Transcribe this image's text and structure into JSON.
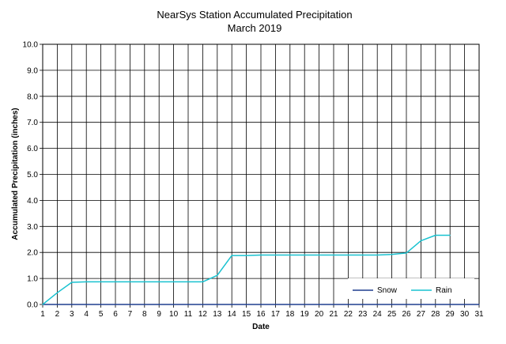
{
  "chart_data": {
    "type": "line",
    "title": "NearSys Station Accumulated Precipitation",
    "subtitle": "March 2019",
    "xlabel": "Date",
    "ylabel": "Accumulated Precipitation (inches)",
    "xlim": [
      1,
      31
    ],
    "ylim": [
      0,
      10
    ],
    "x_ticks": [
      "1",
      "2",
      "3",
      "4",
      "5",
      "6",
      "7",
      "8",
      "9",
      "10",
      "11",
      "12",
      "13",
      "14",
      "15",
      "16",
      "17",
      "18",
      "19",
      "20",
      "21",
      "22",
      "23",
      "24",
      "25",
      "26",
      "27",
      "28",
      "29",
      "30",
      "31"
    ],
    "y_ticks": [
      "0.0",
      "1.0",
      "2.0",
      "3.0",
      "4.0",
      "5.0",
      "6.0",
      "7.0",
      "8.0",
      "9.0",
      "10.0"
    ],
    "grid": "vertical lines at each date, horizontal lines at each inch",
    "legend_position": "bottom-right",
    "series": [
      {
        "name": "Snow",
        "color": "#1f3f8f",
        "x": [
          1,
          2,
          3,
          4,
          5,
          6,
          7,
          8,
          9,
          10,
          11,
          12,
          13,
          14,
          15,
          16,
          17,
          18,
          19,
          20,
          21,
          22,
          23,
          24,
          25,
          26,
          27,
          28,
          29,
          30,
          31
        ],
        "y": [
          0,
          0,
          0,
          0,
          0,
          0,
          0,
          0,
          0,
          0,
          0,
          0,
          0,
          0,
          0,
          0,
          0,
          0,
          0,
          0,
          0,
          0,
          0,
          0,
          0,
          0,
          0,
          0,
          0,
          0,
          0
        ]
      },
      {
        "name": "Rain",
        "color": "#19c2d0",
        "x": [
          1,
          2,
          3,
          4,
          5,
          6,
          7,
          8,
          9,
          10,
          11,
          12,
          13,
          14,
          15,
          16,
          17,
          18,
          19,
          20,
          21,
          22,
          23,
          24,
          25,
          26,
          27,
          28,
          29
        ],
        "y": [
          0.0,
          0.45,
          0.85,
          0.87,
          0.87,
          0.87,
          0.87,
          0.87,
          0.87,
          0.87,
          0.87,
          0.87,
          1.12,
          1.88,
          1.88,
          1.9,
          1.9,
          1.9,
          1.9,
          1.9,
          1.9,
          1.9,
          1.9,
          1.9,
          1.92,
          1.98,
          2.45,
          2.66,
          2.66
        ]
      }
    ]
  }
}
